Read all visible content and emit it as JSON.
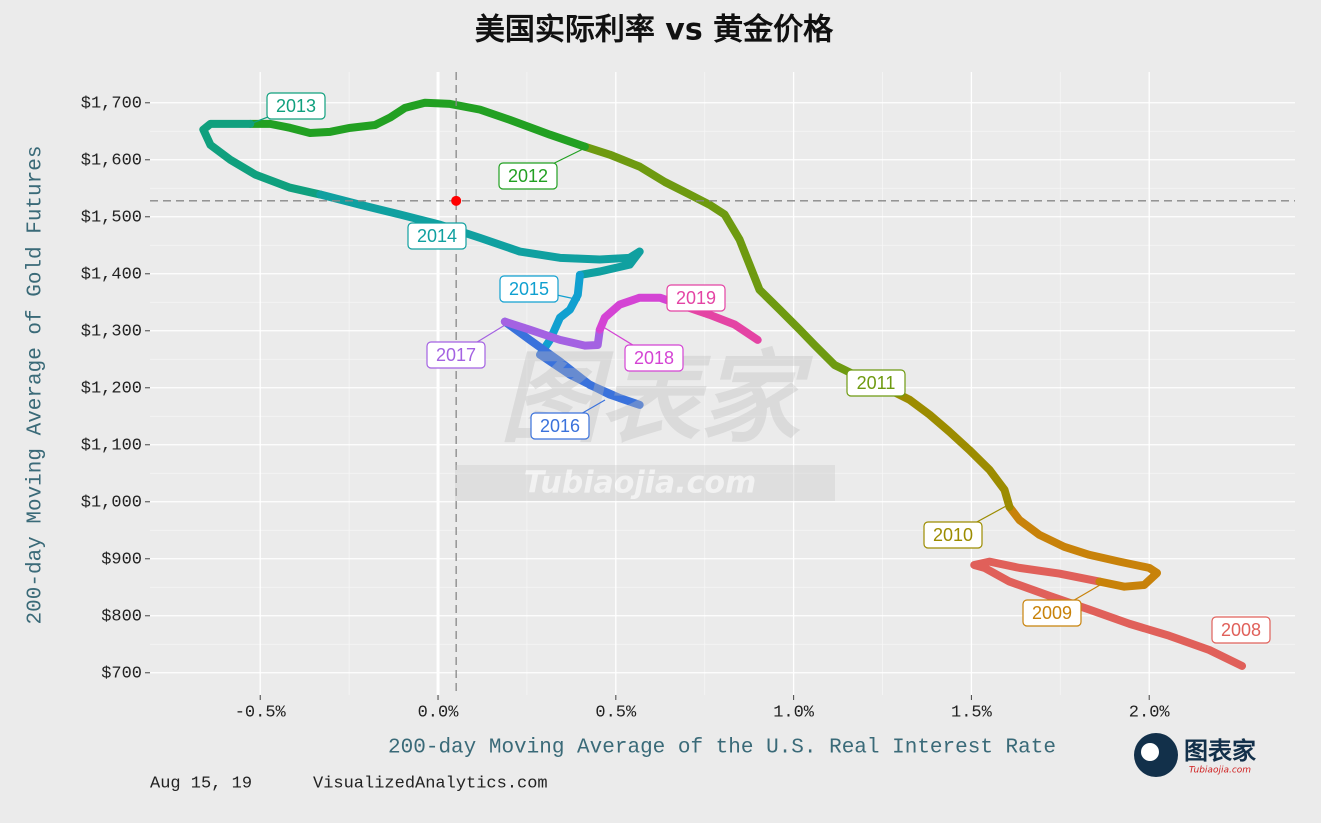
{
  "chart_data": {
    "type": "path",
    "title": "美国实际利率 vs 黄金价格",
    "x_label": "200-day Moving Average of the U.S. Real Interest Rate",
    "y_label": "200-day Moving Average of Gold Futures",
    "date": "Aug 15, 19",
    "source": "VisualizedAnalytics.com",
    "xlim": [
      -0.81,
      2.41
    ],
    "ylim": [
      661,
      1754
    ],
    "xticks": [
      {
        "value": -0.5,
        "label": "-0.5%"
      },
      {
        "value": 0,
        "label": "0.0%"
      },
      {
        "value": 0.5,
        "label": "0.5%"
      },
      {
        "value": 1,
        "label": "1.0%"
      },
      {
        "value": 1.5,
        "label": "1.5%"
      },
      {
        "value": 2,
        "label": "2.0%"
      }
    ],
    "yticks": [
      {
        "value": 700,
        "label": "$700"
      },
      {
        "value": 800,
        "label": "$800"
      },
      {
        "value": 900,
        "label": "$900"
      },
      {
        "value": 1000,
        "label": "$1,000"
      },
      {
        "value": 1100,
        "label": "$1,100"
      },
      {
        "value": 1200,
        "label": "$1,200"
      },
      {
        "value": 1300,
        "label": "$1,300"
      },
      {
        "value": 1400,
        "label": "$1,400"
      },
      {
        "value": 1500,
        "label": "$1,500"
      },
      {
        "value": 1600,
        "label": "$1,600"
      },
      {
        "value": 1700,
        "label": "$1,700"
      }
    ],
    "grid": true,
    "reference_point": {
      "x": 0.051,
      "y": 1528,
      "color": "#ff0000"
    },
    "series": [
      {
        "name": "2008",
        "color": "#e0605a",
        "x": [
          2.261,
          2.169,
          2.056,
          1.944,
          1.831,
          1.719,
          1.607,
          1.537,
          1.508,
          1.551,
          1.635,
          1.747,
          1.86
        ],
        "values": [
          712,
          740,
          765,
          786,
          811,
          835,
          860,
          884,
          889,
          895,
          884,
          874,
          860
        ]
      },
      {
        "name": "2009",
        "color": "#c8820a",
        "x": [
          1.86,
          1.93,
          1.986,
          2.022,
          2.0,
          1.916,
          1.831,
          1.761,
          1.691,
          1.635,
          1.607
        ],
        "values": [
          860,
          851,
          854,
          875,
          884,
          895,
          907,
          921,
          942,
          968,
          991
        ]
      },
      {
        "name": "2010",
        "color": "#9c8c00",
        "x": [
          1.607,
          1.593,
          1.551,
          1.494,
          1.438,
          1.382,
          1.326,
          1.242,
          1.171
        ],
        "values": [
          991,
          1021,
          1056,
          1091,
          1123,
          1153,
          1179,
          1205,
          1223
        ]
      },
      {
        "name": "2011",
        "color": "#6e9a10",
        "x": [
          1.171,
          1.115,
          1.059,
          1.017,
          0.961,
          0.904,
          0.876,
          0.848,
          0.806,
          0.764,
          0.708,
          0.638,
          0.567,
          0.483,
          0.413
        ],
        "values": [
          1223,
          1240,
          1275,
          1302,
          1337,
          1372,
          1416,
          1460,
          1504,
          1521,
          1539,
          1561,
          1588,
          1609,
          1623
        ]
      },
      {
        "name": "2012",
        "color": "#22a022",
        "x": [
          0.413,
          0.315,
          0.202,
          0.118,
          0.034,
          -0.037,
          -0.093,
          -0.135,
          -0.177,
          -0.247,
          -0.303,
          -0.36,
          -0.416,
          -0.472,
          -0.528
        ],
        "values": [
          1623,
          1644,
          1670,
          1688,
          1698,
          1700,
          1691,
          1674,
          1661,
          1656,
          1649,
          1647,
          1656,
          1663,
          1663
        ]
      },
      {
        "name": "2013",
        "color": "#10a07e",
        "x": [
          -0.528,
          -0.584,
          -0.64,
          -0.66,
          -0.64,
          -0.584,
          -0.514,
          -0.416,
          -0.331
        ],
        "values": [
          1663,
          1663,
          1663,
          1653,
          1626,
          1600,
          1574,
          1551,
          1539
        ]
      },
      {
        "name": "2014",
        "color": "#10a0a0",
        "x": [
          -0.331,
          -0.219,
          -0.107,
          0.006,
          0.118,
          0.23,
          0.343,
          0.455,
          0.539,
          0.567,
          0.539,
          0.455,
          0.399
        ],
        "values": [
          1539,
          1521,
          1504,
          1486,
          1463,
          1439,
          1428,
          1425,
          1428,
          1439,
          1416,
          1404,
          1398
        ]
      },
      {
        "name": "2015",
        "color": "#10a0d0",
        "x": [
          0.399,
          0.393,
          0.371,
          0.343,
          0.315,
          0.287
        ],
        "values": [
          1398,
          1363,
          1337,
          1323,
          1284,
          1258
        ]
      },
      {
        "name": "2016",
        "color": "#3a72dc",
        "x": [
          0.287,
          0.371,
          0.483,
          0.567,
          0.511,
          0.427,
          0.343,
          0.258,
          0.188
        ],
        "values": [
          1258,
          1223,
          1188,
          1170,
          1182,
          1205,
          1246,
          1284,
          1316
        ]
      },
      {
        "name": "2017",
        "color": "#a462e2",
        "x": [
          0.188,
          0.258,
          0.343,
          0.413,
          0.449,
          0.455
        ],
        "values": [
          1316,
          1302,
          1284,
          1274,
          1275,
          1302
        ]
      },
      {
        "name": "2018",
        "color": "#d444d4",
        "x": [
          0.455,
          0.469,
          0.511,
          0.567,
          0.624,
          0.68
        ],
        "values": [
          1302,
          1323,
          1346,
          1358,
          1358,
          1346
        ]
      },
      {
        "name": "2019",
        "color": "#e444a4",
        "x": [
          0.68,
          0.764,
          0.834,
          0.899
        ],
        "values": [
          1346,
          1328,
          1311,
          1284
        ]
      }
    ]
  },
  "watermark": {
    "title": "图表家",
    "url": "Tubiaojia.com"
  }
}
